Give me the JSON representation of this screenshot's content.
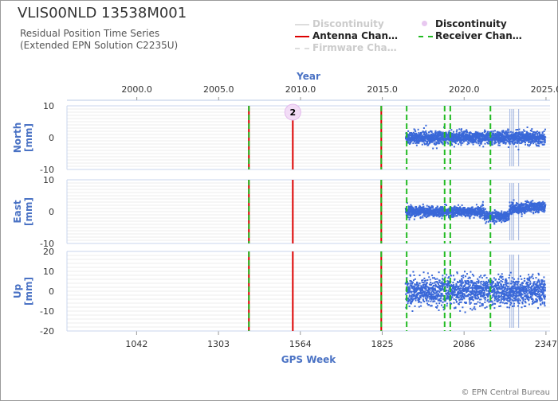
{
  "header": {
    "title": "VLIS00NLD 13538M001",
    "subtitle_line1": "Residual Position Time Series",
    "subtitle_line2": "(Extended EPN Solution C2235U)"
  },
  "legend": {
    "items": [
      {
        "label": "Discontinuity",
        "style": "line",
        "color": "#dddddd",
        "faded": true
      },
      {
        "label": "Discontinuity",
        "style": "dot",
        "color": "#e8c8f0",
        "faded": false
      },
      {
        "label": "Antenna Chan…",
        "style": "line",
        "color": "#dd0000",
        "faded": false
      },
      {
        "label": "Receiver Chan…",
        "style": "dashed",
        "color": "#22bb22",
        "faded": false
      },
      {
        "label": "Firmware Cha…",
        "style": "dashed",
        "color": "#dddddd",
        "faded": true
      }
    ]
  },
  "copyright": "© EPN Central Bureau",
  "chart_data": {
    "type": "scatter",
    "top_axis": {
      "label": "Year",
      "ticks": [
        "2000.0",
        "2005.0",
        "2010.0",
        "2015.0",
        "2020.0",
        "2025.0"
      ]
    },
    "bottom_axis": {
      "label": "GPS Week",
      "ticks": [
        "1042",
        "1303",
        "1564",
        "1825",
        "2086",
        "2347"
      ]
    },
    "panels": [
      {
        "id": "north",
        "ylabel": "North [mm]",
        "ylim": [
          -10,
          10
        ],
        "yticks": [
          "10",
          "0",
          "-10"
        ],
        "noise": 1.0,
        "trend": "flat"
      },
      {
        "id": "east",
        "ylabel": "East [mm]",
        "ylim": [
          -10,
          10
        ],
        "yticks": [
          "10",
          "0",
          "-10"
        ],
        "noise": 0.8,
        "trend": "east"
      },
      {
        "id": "up",
        "ylabel": "Up [mm]",
        "ylim": [
          -20,
          20
        ],
        "yticks": [
          "20",
          "10",
          "0",
          "-10",
          "-20"
        ],
        "noise": 3.5,
        "trend": "flat"
      }
    ],
    "week_range": [
      820,
      2360
    ],
    "data_start_week": 1900,
    "data_end_week": 2345,
    "antenna_changes_week": [
      1400,
      1540,
      1822
    ],
    "receiver_changes_week": [
      1400,
      1822,
      1903,
      2024,
      2042,
      2170
    ],
    "discontinuity_dot": {
      "week": 1540,
      "value": 8,
      "label": "2"
    },
    "outlier_spikes_week": [
      2232,
      2238,
      2244,
      2260
    ]
  }
}
